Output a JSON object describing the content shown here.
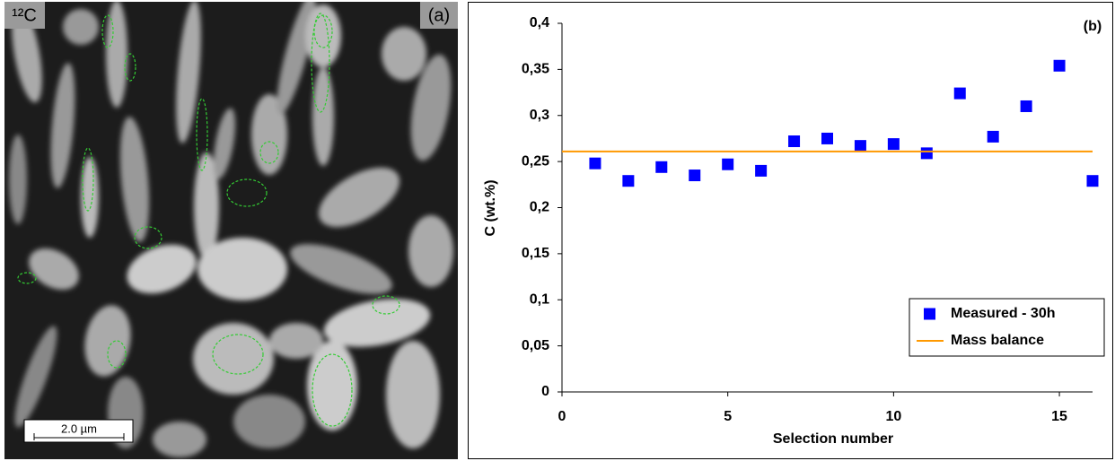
{
  "image": {
    "label": "¹²C",
    "panel": "(a)",
    "scale_bar": "2.0 µm"
  },
  "chart_data": {
    "type": "scatter",
    "panel": "(b)",
    "x_label": "Selection number",
    "y_label": "C  (wt.%)",
    "xlim": [
      0,
      16
    ],
    "ylim": [
      0,
      0.4
    ],
    "xticks": [
      0,
      5,
      10,
      15
    ],
    "yticks": [
      0,
      {
        "value": 0.05,
        "label": "0,05"
      },
      {
        "value": 0.1,
        "label": "0,1"
      },
      {
        "value": 0.15,
        "label": "0,15"
      },
      {
        "value": 0.2,
        "label": "0,2"
      },
      {
        "value": 0.25,
        "label": "0,25"
      },
      {
        "value": 0.3,
        "label": "0,3"
      },
      {
        "value": 0.35,
        "label": "0,35"
      },
      {
        "value": 0.4,
        "label": "0,4"
      }
    ],
    "legend": "lower right",
    "series": [
      {
        "name": "Measured - 30h",
        "color": "#0000ff",
        "kind": "marker",
        "x": [
          1,
          2,
          3,
          4,
          5,
          6,
          7,
          8,
          9,
          10,
          11,
          12,
          13,
          14,
          15,
          16
        ],
        "values": [
          0.248,
          0.229,
          0.244,
          0.235,
          0.247,
          0.24,
          0.272,
          0.275,
          0.267,
          0.269,
          0.259,
          0.324,
          0.277,
          0.31,
          0.354,
          0.229
        ]
      },
      {
        "name": "Mass balance",
        "color": "#ff9900",
        "kind": "line",
        "x": [
          0,
          16
        ],
        "values": [
          0.261,
          0.261
        ]
      }
    ]
  }
}
